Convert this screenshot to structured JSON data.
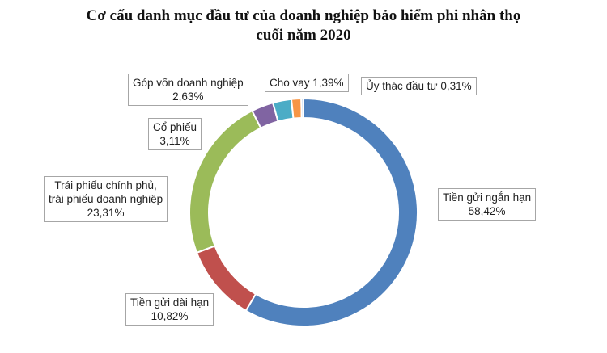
{
  "chart_data": {
    "type": "pie",
    "variant": "donut",
    "title": "Cơ cấu danh mục đầu tư của doanh nghiệp bảo hiểm phi nhân thọ cuối năm 2020",
    "title_lines": [
      "Cơ cấu danh mục đầu tư của doanh nghiệp bảo hiểm phi nhân thọ",
      "cuối năm 2020"
    ],
    "start_angle_deg": 0,
    "direction": "clockwise",
    "slices": [
      {
        "label_lines": [
          "Tiền gửi ngắn hạn"
        ],
        "value": 58.42,
        "value_text": "58,42%",
        "color": "#4f81bd"
      },
      {
        "label_lines": [
          "Tiền gửi dài hạn"
        ],
        "value": 10.82,
        "value_text": "10,82%",
        "color": "#c0504d"
      },
      {
        "label_lines": [
          "Trái phiếu chính phủ,",
          "trái phiếu doanh nghiệp"
        ],
        "value": 23.31,
        "value_text": "23,31%",
        "color": "#9bbb59"
      },
      {
        "label_lines": [
          "Cổ phiếu"
        ],
        "value": 3.11,
        "value_text": "3,11%",
        "color": "#8064a2"
      },
      {
        "label_lines": [
          "Góp vốn doanh nghiệp"
        ],
        "value": 2.63,
        "value_text": "2,63%",
        "color": "#4bacc6"
      },
      {
        "label_lines": [
          "Cho vay"
        ],
        "value": 1.39,
        "value_text": "1,39%",
        "color": "#f79646"
      },
      {
        "label_lines": [
          "Ủy thác đầu tư"
        ],
        "value": 0.31,
        "value_text": "0,31%",
        "color": "#c5d9f1"
      }
    ]
  }
}
